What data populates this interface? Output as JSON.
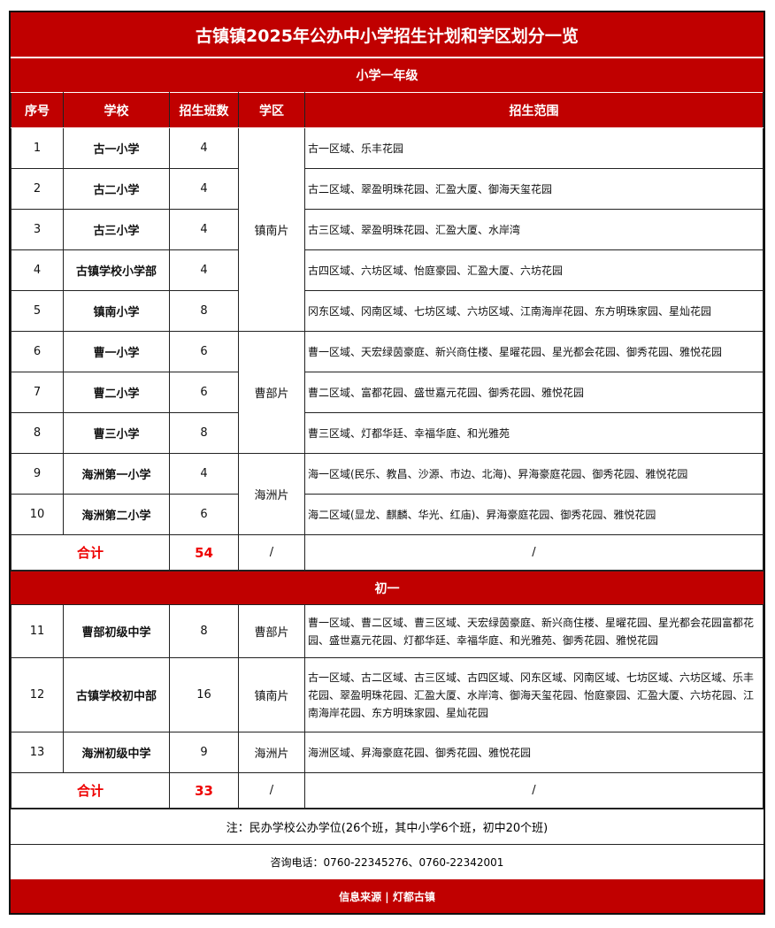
{
  "title": "古镇镇2025年公办中小学招生计划和学区划分一览",
  "primary": {
    "section": "小学一年级",
    "headers": [
      "序号",
      "学校",
      "招生班数",
      "学区",
      "招生范围"
    ],
    "rows": [
      {
        "no": "1",
        "school": "古一小学",
        "classes": "4",
        "range": "古一区域、乐丰花园"
      },
      {
        "no": "2",
        "school": "古二小学",
        "classes": "4",
        "range": "古二区域、翠盈明珠花园、汇盈大厦、御海天玺花园"
      },
      {
        "no": "3",
        "school": "古三小学",
        "classes": "4",
        "range": "古三区域、翠盈明珠花园、汇盈大厦、水岸湾"
      },
      {
        "no": "4",
        "school": "古镇学校小学部",
        "classes": "4",
        "range": "古四区域、六坊区域、怡庭豪园、汇盈大厦、六坊花园"
      },
      {
        "no": "5",
        "school": "镇南小学",
        "classes": "8",
        "range": "冈东区域、冈南区域、七坊区域、六坊区域、江南海岸花园、东方明珠家园、星灿花园"
      },
      {
        "no": "6",
        "school": "曹一小学",
        "classes": "6",
        "range": "曹一区域、天宏绿茵豪庭、新兴商住楼、星曜花园、星光都会花园、御秀花园、雅悦花园"
      },
      {
        "no": "7",
        "school": "曹二小学",
        "classes": "6",
        "range": "曹二区域、富都花园、盛世嘉元花园、御秀花园、雅悦花园"
      },
      {
        "no": "8",
        "school": "曹三小学",
        "classes": "8",
        "range": "曹三区域、灯都华廷、幸福华庭、和光雅苑"
      },
      {
        "no": "9",
        "school": "海洲第一小学",
        "classes": "4",
        "range": "海一区域(民乐、教昌、沙源、市边、北海)、昇海豪庭花园、御秀花园、雅悦花园"
      },
      {
        "no": "10",
        "school": "海洲第二小学",
        "classes": "6",
        "range": "海二区域(显龙、麒麟、华光、红庙)、昇海豪庭花园、御秀花园、雅悦花园"
      }
    ],
    "districts": [
      "镇南片",
      "曹部片",
      "海洲片"
    ],
    "total": {
      "label": "合计",
      "classes": "54",
      "district": "/",
      "range": "/"
    }
  },
  "middle": {
    "section": "初一",
    "rows": [
      {
        "no": "11",
        "school": "曹部初级中学",
        "classes": "8",
        "district": "曹部片",
        "range": "曹一区域、曹二区域、曹三区域、天宏绿茵豪庭、新兴商住楼、星曜花园、星光都会花园富都花园、盛世嘉元花园、灯都华廷、幸福华庭、和光雅苑、御秀花园、雅悦花园"
      },
      {
        "no": "12",
        "school": "古镇学校初中部",
        "classes": "16",
        "district": "镇南片",
        "range": "古一区域、古二区域、古三区域、古四区域、冈东区域、冈南区域、七坊区域、六坊区域、乐丰花园、翠盈明珠花园、汇盈大厦、水岸湾、御海天玺花园、怡庭豪园、汇盈大厦、六坊花园、江南海岸花园、东方明珠家园、星灿花园"
      },
      {
        "no": "13",
        "school": "海洲初级中学",
        "classes": "9",
        "district": "海洲片",
        "range": "海洲区域、昇海豪庭花园、御秀花园、雅悦花园"
      }
    ],
    "total": {
      "label": "合计",
      "classes": "33",
      "district": "/",
      "range": "/"
    }
  },
  "note": "注：民办学校公办学位(26个班，其中小学6个班，初中20个班)",
  "phone": "咨询电话：0760-22345276、0760-22342001",
  "footer": "信息来源 | 灯都古镇",
  "colors": {
    "accent": "#c00000",
    "total_text": "#e00000"
  }
}
